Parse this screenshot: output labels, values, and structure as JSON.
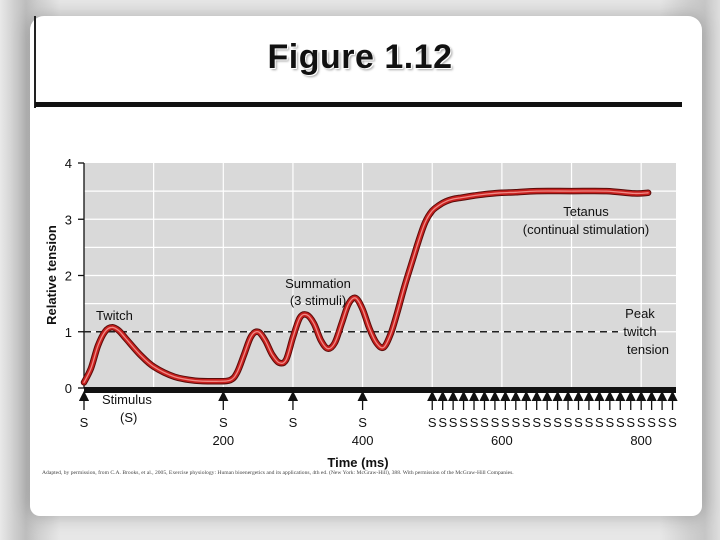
{
  "slide": {
    "title": "Figure 1.12",
    "credit": "Adapted, by permission, from C.A. Brooks, et al., 2005, Exercise physiology: Human bioenergetics and its applications, 4th ed. (New York: McGraw-Hill), 388. With permission of the McGraw-Hill Companies."
  },
  "colors": {
    "plot_bg": "#d9d9d9",
    "grid": "#ffffff",
    "curve": "#c8201e",
    "curve_highlight": "#f08a86",
    "curve_edge": "#5a0c0a",
    "axis": "#111111"
  },
  "chart_data": {
    "type": "line",
    "ylabel": "Relative tension",
    "xlabel": "Time (ms)",
    "xlim": [
      0,
      850
    ],
    "ylim": [
      0,
      4
    ],
    "y_ticks": [
      "0",
      "1",
      "2",
      "3",
      "4"
    ],
    "x_ticks": [
      {
        "value": 200,
        "label": "200"
      },
      {
        "value": 400,
        "label": "400"
      },
      {
        "value": 600,
        "label": "600"
      },
      {
        "value": 800,
        "label": "800"
      }
    ],
    "grid": true,
    "reference_line": {
      "y": 1.0,
      "style": "dashed",
      "label": "Peak twitch tension"
    },
    "series": [
      {
        "x": [
          0,
          10,
          20,
          30,
          40,
          50,
          60,
          80,
          100,
          130,
          160,
          190,
          210,
          220,
          230,
          240,
          250,
          260,
          270,
          280,
          290,
          300,
          310,
          320,
          330,
          340,
          350,
          360,
          370,
          380,
          390,
          400,
          410,
          420,
          430,
          440,
          450,
          460,
          470,
          480,
          490,
          500,
          510,
          520,
          530,
          540,
          560,
          580,
          600,
          620,
          650,
          700,
          750,
          790,
          810
        ],
        "y": [
          0.1,
          0.35,
          0.75,
          1.0,
          1.08,
          1.02,
          0.88,
          0.6,
          0.38,
          0.2,
          0.13,
          0.12,
          0.14,
          0.28,
          0.6,
          0.92,
          1.0,
          0.85,
          0.6,
          0.45,
          0.5,
          0.9,
          1.25,
          1.3,
          1.15,
          0.85,
          0.7,
          0.8,
          1.15,
          1.5,
          1.6,
          1.4,
          1.05,
          0.8,
          0.72,
          0.95,
          1.35,
          1.8,
          2.2,
          2.6,
          2.95,
          3.15,
          3.25,
          3.32,
          3.36,
          3.38,
          3.42,
          3.45,
          3.47,
          3.48,
          3.5,
          3.5,
          3.5,
          3.46,
          3.47
        ]
      }
    ],
    "stimuli": [
      {
        "x": 0,
        "label": "S"
      },
      {
        "x": 200,
        "label": "S"
      },
      {
        "x": 300,
        "label": "S"
      },
      {
        "x": 400,
        "label": "S"
      },
      {
        "x": 500,
        "label": "S"
      },
      {
        "x": 515,
        "label": "S"
      },
      {
        "x": 530,
        "label": "S"
      },
      {
        "x": 545,
        "label": "S"
      },
      {
        "x": 560,
        "label": "S"
      },
      {
        "x": 575,
        "label": "S"
      },
      {
        "x": 590,
        "label": "S"
      },
      {
        "x": 605,
        "label": "S"
      },
      {
        "x": 620,
        "label": "S"
      },
      {
        "x": 635,
        "label": "S"
      },
      {
        "x": 650,
        "label": "S"
      },
      {
        "x": 665,
        "label": "S"
      },
      {
        "x": 680,
        "label": "S"
      },
      {
        "x": 695,
        "label": "S"
      },
      {
        "x": 710,
        "label": "S"
      },
      {
        "x": 725,
        "label": "S"
      },
      {
        "x": 740,
        "label": "S"
      },
      {
        "x": 755,
        "label": "S"
      },
      {
        "x": 770,
        "label": "S"
      },
      {
        "x": 785,
        "label": "S"
      },
      {
        "x": 800,
        "label": "S"
      },
      {
        "x": 815,
        "label": "S"
      },
      {
        "x": 830,
        "label": "S"
      },
      {
        "x": 845,
        "label": "S"
      }
    ],
    "annotations": {
      "twitch": "Twitch",
      "summation_line1": "Summation",
      "summation_line2": "(3 stimuli)",
      "tetanus_line1": "Tetanus",
      "tetanus_line2": "(continual stimulation)",
      "peak_line1": "Peak",
      "peak_line2": "twitch",
      "peak_line3": "tension",
      "stimulus_line1": "Stimulus",
      "stimulus_line2": "(S)"
    }
  }
}
